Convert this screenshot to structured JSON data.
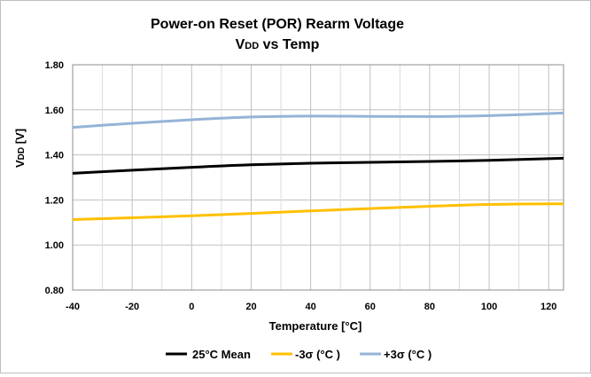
{
  "chart_data": {
    "type": "line",
    "title": "Power-on Reset (POR) Rearm Voltage",
    "subtitle": "VDD vs Temp",
    "subtitle_main": "V",
    "subtitle_sub": "DD",
    "subtitle_rest": " vs Temp",
    "xlabel": "Temperature [°C]",
    "ylabel": "VDD [V]",
    "ylabel_main": "V",
    "ylabel_sub": "DD",
    "ylabel_rest": " [V]",
    "xlim": [
      -40,
      125
    ],
    "ylim": [
      0.8,
      1.8
    ],
    "x_ticks": [
      -40,
      -20,
      0,
      20,
      40,
      60,
      80,
      100,
      120
    ],
    "x_tick_labels": [
      "-40",
      "-20",
      "0",
      "20",
      "40",
      "60",
      "80",
      "100",
      "120"
    ],
    "y_ticks": [
      0.8,
      1.0,
      1.2,
      1.4,
      1.6,
      1.8
    ],
    "y_tick_labels": [
      "0.80",
      "1.00",
      "1.20",
      "1.40",
      "1.60",
      "1.80"
    ],
    "grid": true,
    "legend_position": "bottom",
    "x": [
      -40,
      -20,
      0,
      20,
      40,
      60,
      80,
      100,
      125
    ],
    "series": [
      {
        "name": "25°C Mean",
        "color": "#000000",
        "values": [
          1.318,
          1.332,
          1.345,
          1.356,
          1.363,
          1.367,
          1.371,
          1.376,
          1.385
        ]
      },
      {
        "name": "-3σ (°C )",
        "color": "#ffc000",
        "values": [
          1.113,
          1.121,
          1.13,
          1.14,
          1.151,
          1.162,
          1.172,
          1.18,
          1.183
        ]
      },
      {
        "name": "+3σ (°C )",
        "color": "#95b3d7",
        "values": [
          1.522,
          1.54,
          1.556,
          1.568,
          1.572,
          1.571,
          1.57,
          1.574,
          1.586
        ]
      }
    ]
  }
}
